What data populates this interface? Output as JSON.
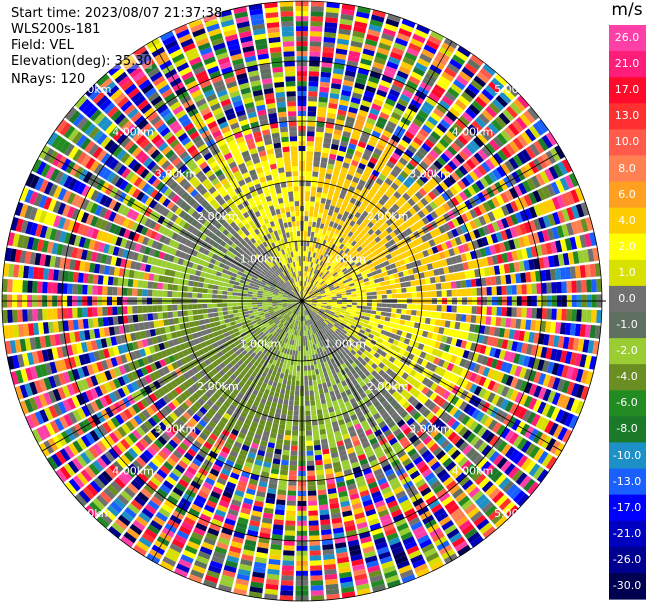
{
  "info": {
    "start_time": "Start time: 2023/08/07 21:37:38",
    "instrument": "WLS200s-181",
    "field": "Field: VEL",
    "elevation": "Elevation(deg): 35.30",
    "nrays": "NRays: 120"
  },
  "chart_data": {
    "type": "heatmap",
    "projection": "polar PPI",
    "n_rays": 120,
    "range_rings": [
      "1.00km",
      "2.00km",
      "3.00km",
      "4.00km",
      "5.00km"
    ],
    "colorbar": {
      "unit": "m/s",
      "tick_labels": [
        "26.0",
        "21.0",
        "17.0",
        "13.0",
        "10.0",
        "8.0",
        "6.0",
        "4.0",
        "2.0",
        "1.0",
        "0.0",
        "-1.0",
        "-2.0",
        "-4.0",
        "-6.0",
        "-8.0",
        "-10.0",
        "-13.0",
        "-17.0",
        "-21.0",
        "-26.0",
        "-30.0"
      ],
      "colors": [
        "#ff3fa8",
        "#ff1d7a",
        "#ff0a2a",
        "#ff3030",
        "#ff5a4a",
        "#ff8050",
        "#ffa020",
        "#ffcc00",
        "#ffff00",
        "#d8e000",
        "#707070",
        "#607060",
        "#9acd32",
        "#6b8e23",
        "#228b22",
        "#1a7a2a",
        "#1e90c8",
        "#1a60ff",
        "#0000ff",
        "#0000c0",
        "#000090",
        "#000050"
      ]
    }
  }
}
